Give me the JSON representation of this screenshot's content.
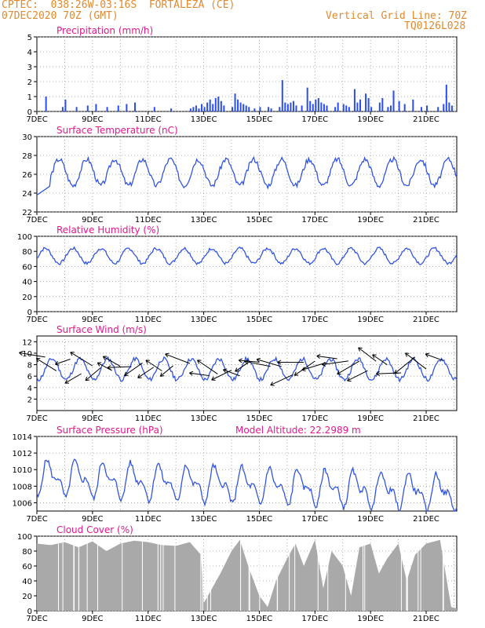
{
  "header": {
    "line1": "CPTEC:  038:26W-03:16S  FORTALEZA (CE)",
    "line2": "07DEC2020 70Z (GMT)",
    "right1": "Vertical Grid Line: 70Z",
    "right2": "TQ0126L028"
  },
  "colors": {
    "header": "#e08a2e",
    "title": "#e0198c",
    "line": "#3355dd",
    "bar": "#2a4ef0",
    "cloud": "#a9a9a9"
  },
  "x_axis": {
    "ticks": [
      "7DEC",
      "9DEC",
      "11DEC",
      "13DEC",
      "15DEC",
      "17DEC",
      "19DEC",
      "21DEC"
    ],
    "start_day": 7,
    "end_day": 22.1
  },
  "chart_data": [
    {
      "id": "precip",
      "type": "bar",
      "title": "Precipitation (mm/h)",
      "ylim": [
        0,
        5
      ],
      "yticks": [
        0,
        1,
        2,
        3,
        4,
        5
      ],
      "x": [
        7.3,
        7.9,
        8.0,
        8.4,
        8.8,
        9.1,
        9.5,
        9.9,
        10.2,
        10.5,
        11.2,
        11.8,
        12.5,
        12.6,
        12.7,
        12.8,
        12.9,
        13.0,
        13.1,
        13.2,
        13.3,
        13.4,
        13.5,
        13.6,
        13.7,
        14.0,
        14.1,
        14.2,
        14.3,
        14.4,
        14.5,
        14.6,
        14.8,
        15.0,
        15.3,
        15.4,
        15.7,
        15.8,
        15.9,
        16.0,
        16.1,
        16.2,
        16.3,
        16.5,
        16.7,
        16.8,
        16.9,
        17.0,
        17.1,
        17.2,
        17.3,
        17.4,
        17.7,
        17.8,
        18.0,
        18.1,
        18.2,
        18.4,
        18.5,
        18.6,
        18.8,
        18.9,
        19.0,
        19.3,
        19.4,
        19.6,
        19.7,
        19.8,
        20.0,
        20.2,
        20.5,
        20.8,
        21.0,
        21.4,
        21.6,
        21.7,
        21.8,
        21.9
      ],
      "values": [
        1.0,
        0.3,
        0.8,
        0.3,
        0.4,
        0.5,
        0.3,
        0.4,
        0.5,
        0.6,
        0.3,
        0.2,
        0.2,
        0.3,
        0.4,
        0.2,
        0.5,
        0.3,
        0.6,
        0.8,
        0.5,
        0.9,
        1.0,
        0.7,
        0.4,
        0.3,
        1.2,
        0.8,
        0.6,
        0.5,
        0.4,
        0.3,
        0.2,
        0.3,
        0.3,
        0.2,
        0.3,
        2.1,
        0.6,
        0.5,
        0.6,
        0.7,
        0.4,
        0.4,
        1.6,
        0.7,
        0.5,
        0.8,
        0.9,
        0.6,
        0.5,
        0.4,
        0.3,
        0.6,
        0.5,
        0.4,
        0.3,
        1.5,
        0.6,
        0.8,
        1.2,
        0.9,
        0.3,
        0.6,
        0.9,
        0.3,
        0.4,
        1.4,
        0.7,
        0.5,
        0.8,
        0.3,
        0.4,
        0.3,
        0.5,
        1.8,
        0.6,
        0.4
      ]
    },
    {
      "id": "temp",
      "type": "line",
      "title": "Surface Temperature (nC)",
      "ylim": [
        22,
        30
      ],
      "yticks": [
        22,
        24,
        26,
        28,
        30
      ],
      "phase": 0.55,
      "mean": 26.2,
      "amp": 1.4,
      "seed": 3
    },
    {
      "id": "rh",
      "type": "line",
      "title": "Relative Humidity (%)",
      "ylim": [
        0,
        100
      ],
      "yticks": [
        0,
        20,
        40,
        60,
        80,
        100
      ],
      "phase": 0.05,
      "mean": 74,
      "amp": 10,
      "seed": 7
    },
    {
      "id": "wind",
      "type": "line",
      "title": "Surface Wind (m/s)",
      "ylim": [
        0,
        13
      ],
      "yticks": [
        2,
        4,
        6,
        8,
        10,
        12
      ],
      "phase": 0.3,
      "mean": 7.2,
      "amp": 1.8,
      "seed": 11,
      "vectors_at": [
        7.3,
        7.7,
        8.2,
        8.6,
        9.0,
        9.3,
        9.7,
        10.0,
        10.4,
        10.8,
        11.2,
        11.5,
        11.9,
        12.5,
        13.2,
        13.5,
        14.0,
        14.3,
        14.6,
        15.0,
        15.4,
        15.8,
        16.2,
        16.6,
        17.0,
        17.4,
        17.8,
        18.2,
        18.6,
        18.9,
        19.2,
        19.6,
        20.1,
        20.6,
        21.0,
        21.6
      ]
    },
    {
      "id": "pres",
      "type": "line",
      "title": "Surface Pressure (hPa)",
      "note": "Model Altitude: 22.2989 m",
      "ylim": [
        1005,
        1014
      ],
      "yticks": [
        1006,
        1008,
        1010,
        1012,
        1014
      ],
      "phase": 0.2,
      "mean": 1009.0,
      "amp": 1.6,
      "seed": 5
    },
    {
      "id": "cloud",
      "type": "area",
      "title": "Cloud Cover (%)",
      "ylim": [
        0,
        100
      ],
      "yticks": [
        0,
        20,
        40,
        60,
        80,
        100
      ],
      "x": [
        7.0,
        7.5,
        8.0,
        8.5,
        9.0,
        9.5,
        10.0,
        10.5,
        11.0,
        11.5,
        12.0,
        12.5,
        12.9,
        13.0,
        13.3,
        13.6,
        14.0,
        14.3,
        14.6,
        15.0,
        15.3,
        15.6,
        16.0,
        16.3,
        16.6,
        17.0,
        17.3,
        17.6,
        18.0,
        18.3,
        18.6,
        19.0,
        19.3,
        19.6,
        20.0,
        20.3,
        20.6,
        21.0,
        21.5,
        21.9,
        22.1
      ],
      "values": [
        90,
        88,
        92,
        85,
        93,
        80,
        90,
        94,
        92,
        88,
        87,
        92,
        75,
        10,
        30,
        50,
        80,
        95,
        60,
        20,
        5,
        40,
        70,
        90,
        60,
        95,
        30,
        80,
        60,
        20,
        85,
        90,
        50,
        70,
        90,
        40,
        75,
        90,
        95,
        5,
        3
      ]
    }
  ]
}
